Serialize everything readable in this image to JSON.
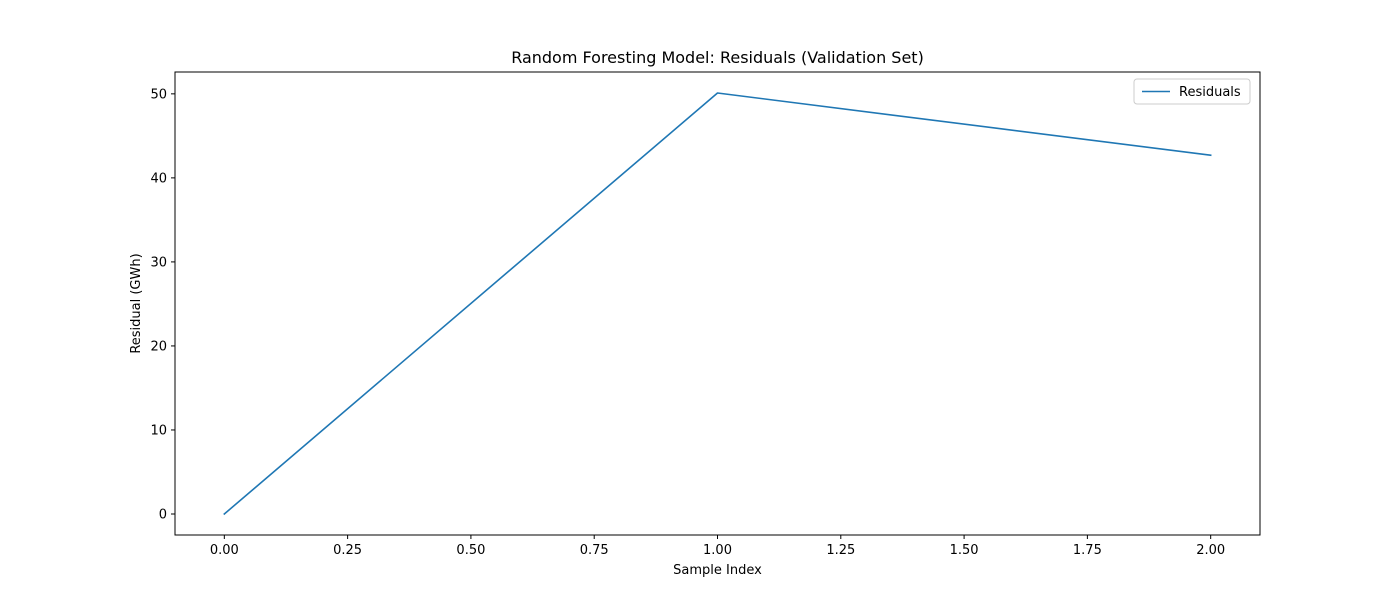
{
  "chart_data": {
    "type": "line",
    "title": "Random Foresting Model: Residuals (Validation Set)",
    "xlabel": "Sample Index",
    "ylabel": "Residual (GWh)",
    "xlim": [
      -0.1,
      2.1
    ],
    "ylim": [
      -2.5,
      52.6
    ],
    "xticks": [
      0.0,
      0.25,
      0.5,
      0.75,
      1.0,
      1.25,
      1.5,
      1.75,
      2.0
    ],
    "xtick_labels": [
      "0.00",
      "0.25",
      "0.50",
      "0.75",
      "1.00",
      "1.25",
      "1.50",
      "1.75",
      "2.00"
    ],
    "yticks": [
      0,
      10,
      20,
      30,
      40,
      50
    ],
    "ytick_labels": [
      "0",
      "10",
      "20",
      "30",
      "40",
      "50"
    ],
    "grid": false,
    "legend_position": "top-right",
    "series": [
      {
        "name": "Residuals",
        "color": "#1f77b4",
        "x": [
          0,
          1,
          2
        ],
        "y": [
          0.0,
          50.1,
          42.7
        ]
      }
    ]
  }
}
